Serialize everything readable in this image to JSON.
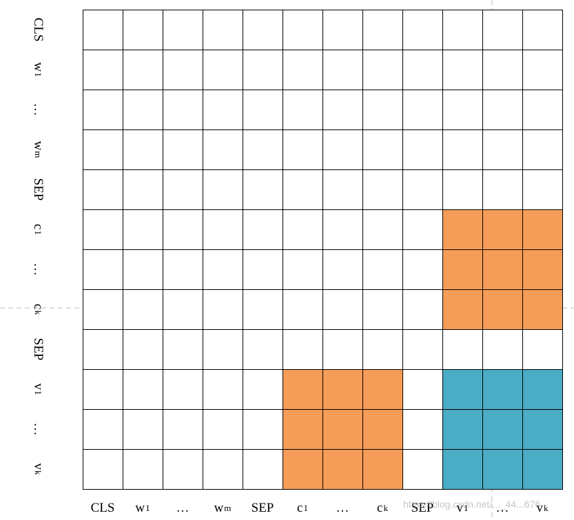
{
  "labels": [
    {
      "base": "CLS",
      "sub": ""
    },
    {
      "base": "w",
      "sub": "1"
    },
    {
      "base": "…",
      "sub": ""
    },
    {
      "base": "w",
      "sub": "m"
    },
    {
      "base": "SEP",
      "sub": ""
    },
    {
      "base": "c",
      "sub": "1"
    },
    {
      "base": "…",
      "sub": ""
    },
    {
      "base": "c",
      "sub": "k"
    },
    {
      "base": "SEP",
      "sub": ""
    },
    {
      "base": "v",
      "sub": "1"
    },
    {
      "base": "…",
      "sub": ""
    },
    {
      "base": "v",
      "sub": "k"
    }
  ],
  "colors": {
    "empty": "#ffffff",
    "orange": "#F59D58",
    "blue": "#4BACC6"
  },
  "matrix": [
    "000000000000",
    "000000000000",
    "000000000000",
    "000000000000",
    "000000000000",
    "000000000ooo",
    "000000000ooo",
    "000000000ooo",
    "000000000000",
    "00000ooo0bbb",
    "00000ooo0bbb",
    "00000ooo0bbb"
  ],
  "watermark": "https://blog.csdn.net/..._44...676"
}
